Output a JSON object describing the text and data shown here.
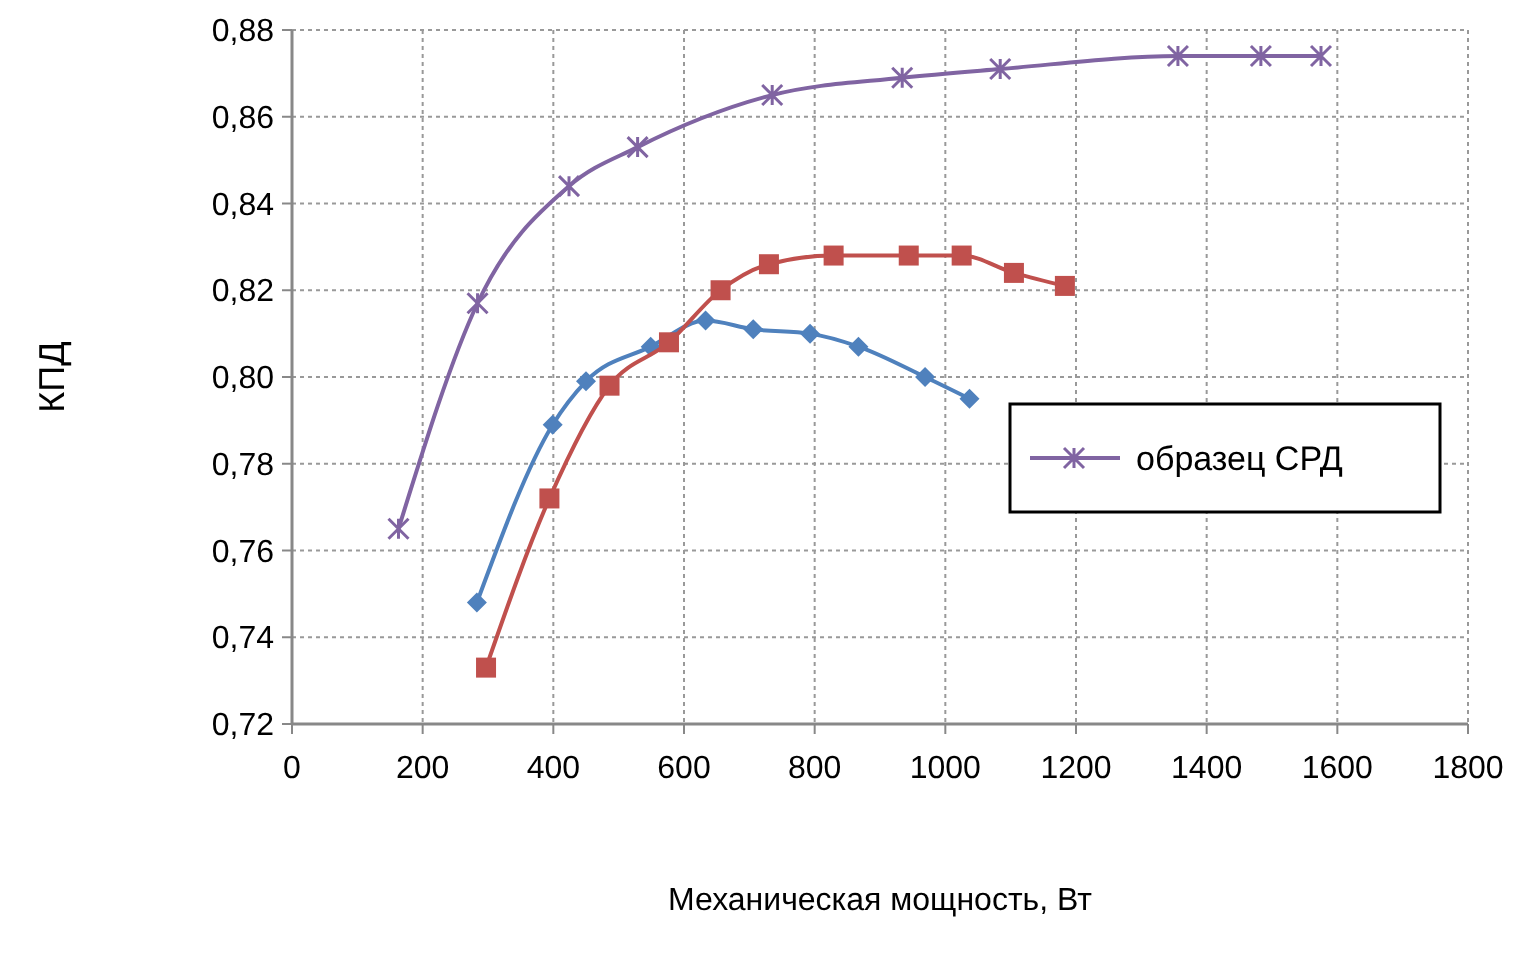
{
  "chart_data": {
    "type": "line",
    "xlabel": "Механическая  мощность, Вт",
    "ylabel": "КПД",
    "xlim": [
      0,
      1800
    ],
    "xticks": [
      0,
      200,
      400,
      600,
      800,
      1000,
      1200,
      1400,
      1600,
      1800
    ],
    "ylim": [
      0.72,
      0.88
    ],
    "yticks": [
      {
        "value": 0.72,
        "label": "0,72"
      },
      {
        "value": 0.74,
        "label": "0,74"
      },
      {
        "value": 0.76,
        "label": "0,76"
      },
      {
        "value": 0.78,
        "label": "0,78"
      },
      {
        "value": 0.8,
        "label": "0,80"
      },
      {
        "value": 0.82,
        "label": "0,82"
      },
      {
        "value": 0.84,
        "label": "0,84"
      },
      {
        "value": 0.86,
        "label": "0,86"
      },
      {
        "value": 0.88,
        "label": "0,88"
      }
    ],
    "grid": true,
    "legend": "right",
    "series": [
      {
        "name": "образец СРД",
        "color": "#8064a2",
        "marker": "cross",
        "x": [
          163,
          284,
          424,
          529,
          735,
          934,
          1084,
          1356,
          1483,
          1575
        ],
        "values": [
          0.765,
          0.817,
          0.844,
          0.853,
          0.865,
          0.869,
          0.871,
          0.874,
          0.874,
          0.874
        ]
      },
      {
        "color": "#4f81bd",
        "marker": "diamond",
        "x": [
          283,
          399,
          450,
          549,
          633,
          706,
          793,
          867,
          969,
          1037
        ],
        "values": [
          0.748,
          0.789,
          0.799,
          0.807,
          0.813,
          0.811,
          0.81,
          0.807,
          0.8,
          0.795
        ]
      },
      {
        "color": "#c0504d",
        "marker": "square",
        "x": [
          297,
          394,
          486,
          577,
          656,
          730,
          829,
          944,
          1025,
          1105,
          1183
        ],
        "values": [
          0.733,
          0.772,
          0.798,
          0.808,
          0.82,
          0.826,
          0.828,
          0.828,
          0.828,
          0.824,
          0.821
        ]
      }
    ]
  }
}
